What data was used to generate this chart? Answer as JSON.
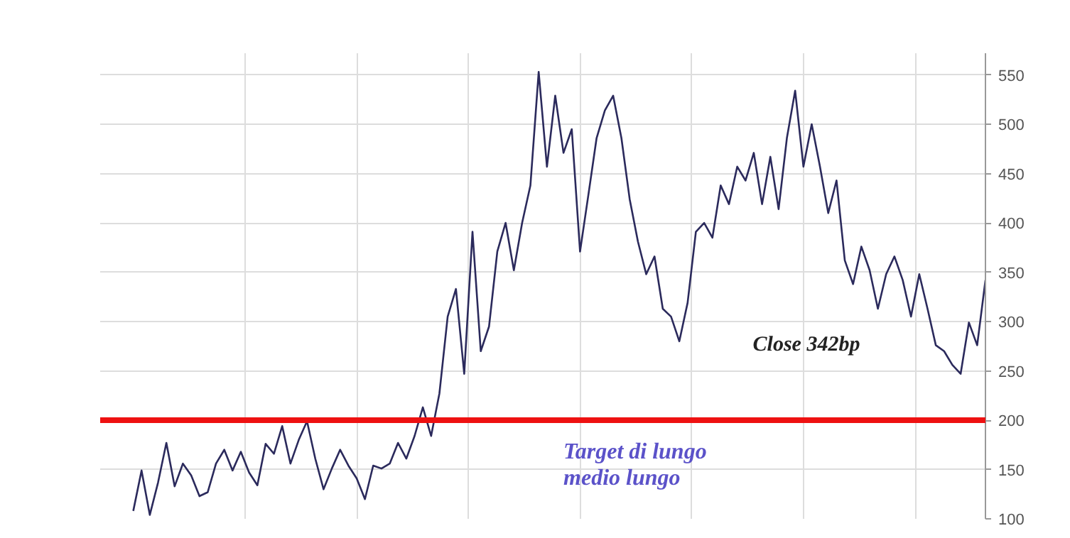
{
  "chart_data": {
    "type": "line",
    "categories": [
      null,
      null,
      null,
      null,
      null,
      null,
      null,
      null,
      null,
      null,
      null,
      null,
      null,
      null,
      null,
      null,
      null,
      null,
      null,
      null,
      null,
      null,
      null,
      null,
      null,
      null,
      null,
      null,
      null,
      null,
      null,
      null,
      null,
      null,
      null,
      null,
      null,
      null,
      null,
      null,
      null,
      null,
      null,
      null,
      null,
      null,
      null,
      null,
      null,
      null,
      null,
      null,
      null,
      null,
      null,
      null,
      null,
      null,
      null,
      null,
      null,
      null,
      null,
      null,
      null,
      null,
      null,
      null,
      null,
      null,
      null,
      null,
      null,
      null,
      null,
      null,
      null,
      null,
      null,
      null,
      null,
      null,
      null,
      null,
      null,
      null,
      null,
      null,
      null,
      null,
      null,
      null,
      null,
      null,
      null,
      null,
      null,
      null,
      null,
      null,
      null,
      null,
      null,
      null
    ],
    "series": [
      {
        "color": "#2b2a5c",
        "values": [
          108,
          149,
          104,
          137,
          177,
          133,
          156,
          144,
          123,
          127,
          156,
          170,
          149,
          168,
          147,
          134,
          176,
          166,
          194,
          156,
          180,
          199,
          161,
          130,
          151,
          170,
          154,
          141,
          120,
          154,
          151,
          156,
          177,
          161,
          184,
          213,
          184,
          227,
          305,
          333,
          247,
          391,
          270,
          295,
          371,
          400,
          352,
          400,
          438,
          553,
          457,
          529,
          471,
          495,
          371,
          428,
          486,
          514,
          529,
          486,
          424,
          381,
          348,
          366,
          313,
          305,
          280,
          319,
          391,
          400,
          385,
          438,
          419,
          457,
          443,
          471,
          419,
          467,
          414,
          486,
          534,
          457,
          500,
          457,
          410,
          443,
          362,
          338,
          376,
          352,
          313,
          348,
          366,
          342,
          305,
          348,
          313,
          276,
          270,
          256,
          247,
          299,
          276,
          342
        ]
      }
    ],
    "ylim": [
      100,
      572
    ],
    "yticks": [
      100,
      150,
      200,
      250,
      300,
      350,
      400,
      450,
      500,
      550
    ],
    "grid": true,
    "ref_lines": [
      {
        "axis": "y",
        "value": 200,
        "color": "#ee1111"
      }
    ],
    "annotations": [
      "Close 342bp",
      "Target di lungo\nmedio lungo"
    ]
  }
}
